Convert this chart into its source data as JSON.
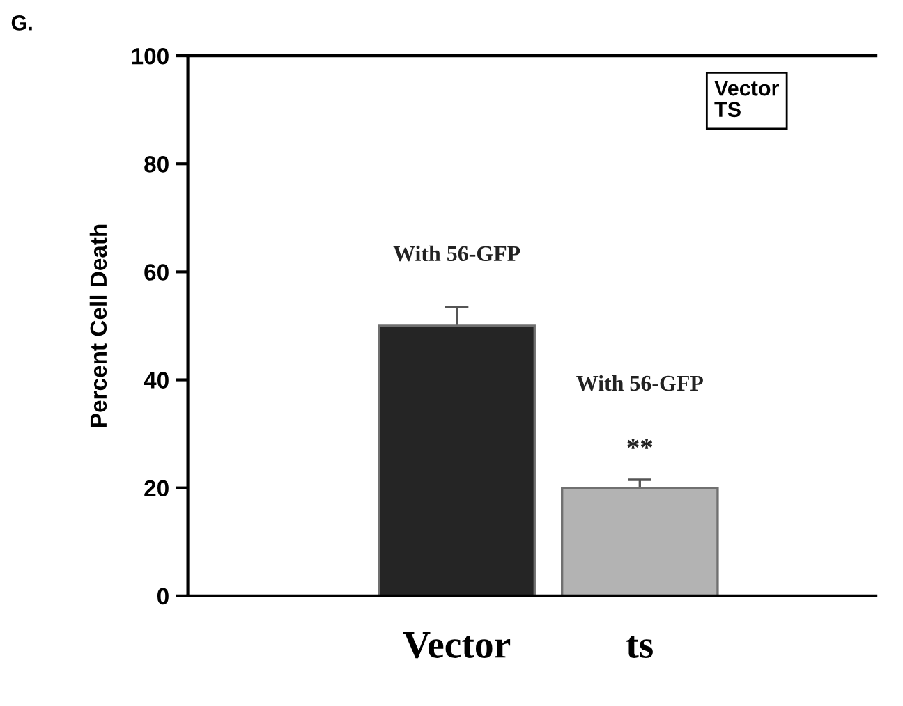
{
  "chart_data": {
    "type": "bar",
    "categories": [
      "Vector",
      "ts"
    ],
    "values": [
      50,
      20
    ],
    "errors": [
      3.5,
      1.5
    ],
    "colors": [
      "#252525",
      "#b3b3b3"
    ],
    "ylabel": "Percent Cell Death",
    "ylim": [
      0,
      100
    ],
    "yticks": [
      0,
      20,
      40,
      60,
      80,
      100
    ],
    "grid": false,
    "legend": false,
    "annotations": [
      "G.",
      "Vector\nTS",
      "With 56-GFP",
      "With 56-GFP",
      "**"
    ]
  }
}
